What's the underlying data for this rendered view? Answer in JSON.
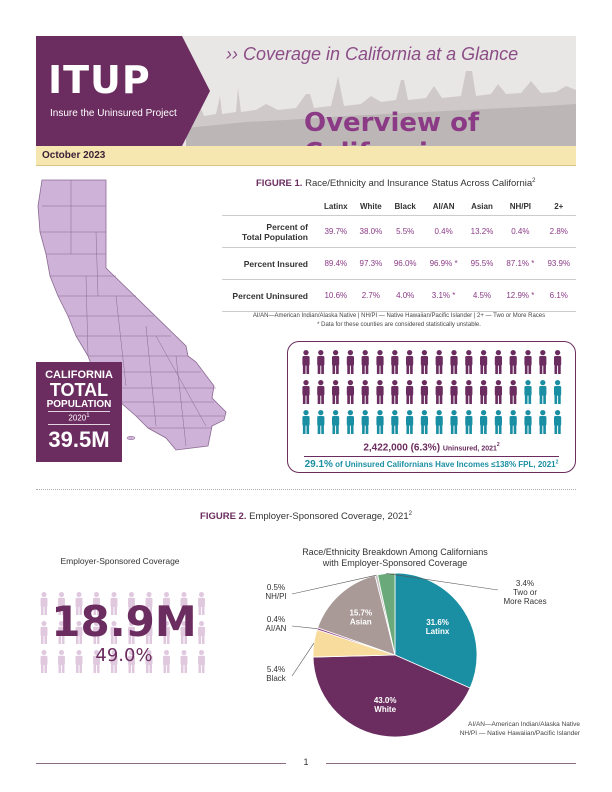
{
  "header": {
    "logo": "ITUP",
    "logo_sub": "Insure the Uninsured Project",
    "kicker": "›› Coverage in California at a Glance",
    "title": "Overview of California",
    "date": "October 2023"
  },
  "population_box": {
    "line1": "CALIFORNIA",
    "line2": "TOTAL",
    "line3": "POPULATION",
    "year": "2020",
    "year_sup": "1",
    "value": "39.5M"
  },
  "figure1": {
    "label": "FIGURE 1.",
    "title": "Race/Ethnicity and Insurance Status Across California",
    "title_sup": "2",
    "columns": [
      "Latinx",
      "White",
      "Black",
      "AI/AN",
      "Asian",
      "NH/PI",
      "2+"
    ],
    "rows": [
      {
        "label_a": "Percent of",
        "label_b": "Total Population",
        "values": [
          "39.7%",
          "38.0%",
          "5.5%",
          "0.4%",
          "13.2%",
          "0.4%",
          "2.8%"
        ]
      },
      {
        "label_a": "Percent Insured",
        "label_b": "",
        "values": [
          "89.4%",
          "97.3%",
          "96.0%",
          "96.9% *",
          "95.5%",
          "87.1% *",
          "93.9%"
        ]
      },
      {
        "label_a": "Percent Uninsured",
        "label_b": "",
        "values": [
          "10.6%",
          "2.7%",
          "4.0%",
          "3.1% *",
          "4.5%",
          "12.9% *",
          "6.1%"
        ]
      }
    ],
    "note1": "AI/AN—American Indian/Alaska Native | NH/PI — Native Hawaiian/Pacific Islander | 2+ — Two or More Races",
    "note2": "* Data for these counties are considered statistically unstable.",
    "uninsured_value": "2,422,000 (6.3%)",
    "uninsured_label": "Uninsured, 2021",
    "uninsured_sup": "2",
    "low_income_value": "29.1%",
    "low_income_label": "of Uninsured Californians Have Incomes ≤138% FPL, 2021",
    "low_income_sup": "2",
    "people_rows": 3,
    "people_cols": 18,
    "people_highlighted": 33,
    "colors": {
      "purple": "#6b2c5f",
      "teal": "#1a8fa3"
    }
  },
  "figure2": {
    "label": "FIGURE 2.",
    "title": "Employer-Sponsored Coverage, 2021",
    "title_sup": "2",
    "esc_heading": "Employer-Sponsored Coverage",
    "esc_count": "18.9M",
    "esc_pct": "49.0%",
    "pie_heading_1": "Race/Ethnicity Breakdown Among Californians",
    "pie_heading_2": "with Employer-Sponsored Coverage",
    "note1": "AI/AN—American Indian/Alaska Native",
    "note2": "NH/PI — Native Hawaiian/Pacific Islander"
  },
  "chart_data": {
    "type": "pie",
    "title": "Race/Ethnicity Breakdown Among Californians with Employer-Sponsored Coverage",
    "slices": [
      {
        "name": "Latinx",
        "value": 31.6,
        "label": "31.6%",
        "color": "#1a8fa3"
      },
      {
        "name": "White",
        "value": 43.0,
        "label": "43.0%",
        "color": "#6b2c5f"
      },
      {
        "name": "Black",
        "value": 5.4,
        "label": "5.4%",
        "color": "#f7dc9e"
      },
      {
        "name": "AI/AN",
        "value": 0.4,
        "label": "0.4%",
        "color": "#8b3a86"
      },
      {
        "name": "Asian",
        "value": 15.7,
        "label": "15.7%",
        "color": "#a99a98"
      },
      {
        "name": "NH/PI",
        "value": 0.5,
        "label": "0.5%",
        "color": "#c7c2c4"
      },
      {
        "name": "Two or More Races",
        "value": 3.4,
        "label": "3.4%",
        "color": "#6aaa7a"
      }
    ]
  },
  "page_number": "1"
}
